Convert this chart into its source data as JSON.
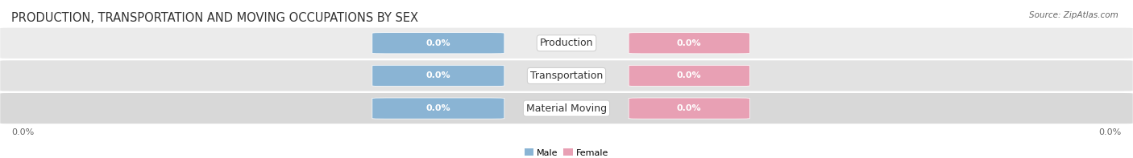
{
  "title": "PRODUCTION, TRANSPORTATION AND MOVING OCCUPATIONS BY SEX",
  "source_text": "Source: ZipAtlas.com",
  "categories": [
    "Production",
    "Transportation",
    "Material Moving"
  ],
  "male_values": [
    0.0,
    0.0,
    0.0
  ],
  "female_values": [
    0.0,
    0.0,
    0.0
  ],
  "male_color": "#8ab4d4",
  "female_color": "#e8a0b4",
  "row_bg_colors": [
    "#ebebeb",
    "#e2e2e2",
    "#d8d8d8"
  ],
  "label_text": "0.0%",
  "title_fontsize": 10.5,
  "label_fontsize": 8,
  "category_fontsize": 9,
  "figsize": [
    14.06,
    1.97
  ],
  "dpi": 100,
  "male_legend": "Male",
  "female_legend": "Female",
  "left_axis_label": "0.0%",
  "right_axis_label": "0.0%"
}
